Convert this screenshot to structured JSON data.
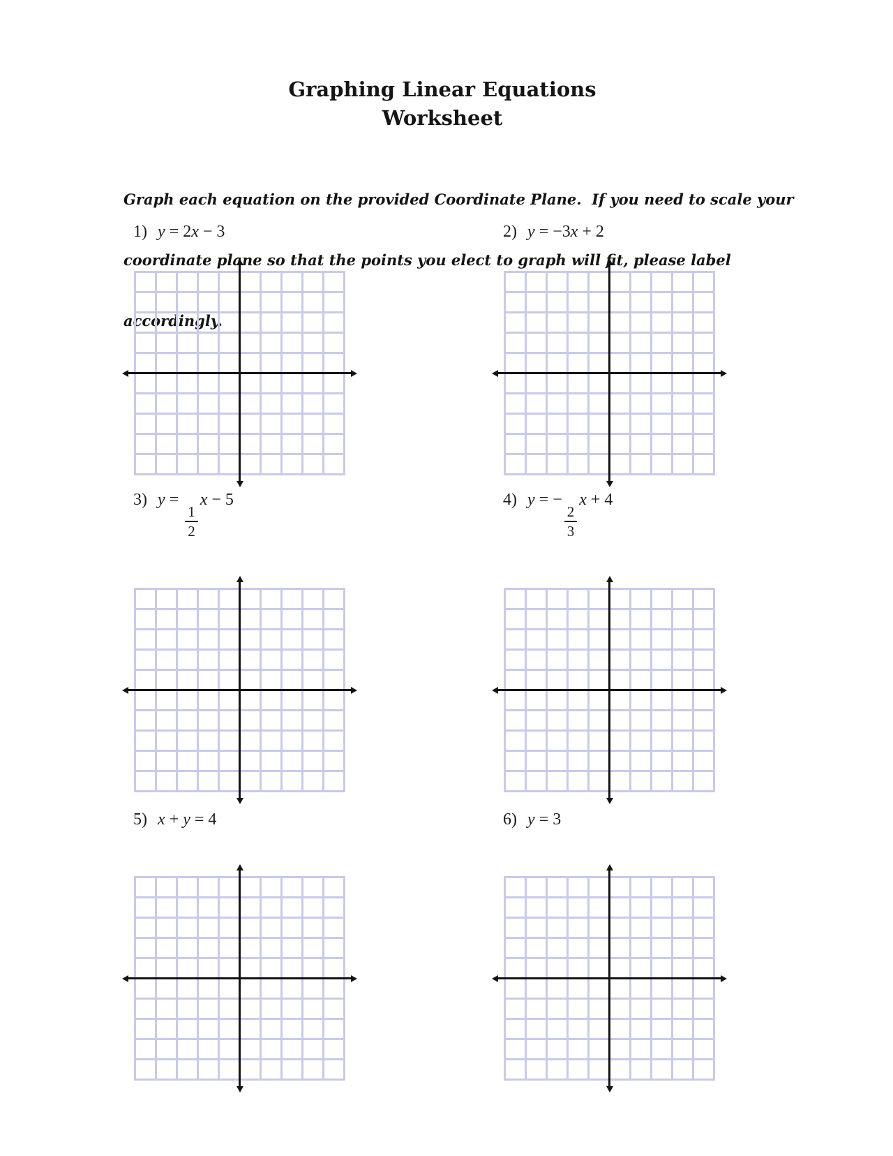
{
  "title": {
    "line1": "Graphing Linear Equations",
    "line2": "Worksheet"
  },
  "instructions": {
    "line1": "Graph each equation on the provided Coordinate Plane.  If you need to scale your",
    "line2": "coordinate plane so that the points you elect to graph will fit, please label",
    "line3": "accordingly."
  },
  "colors": {
    "grid_line": "#c9c9ee",
    "axis": "#141414",
    "text": "#1a1a1a"
  },
  "plot": {
    "columns": 10,
    "rows": 10
  },
  "problems": [
    {
      "label": "1)",
      "t1": "y",
      "t2": " = 2",
      "t3": "x",
      "t4": " − 3"
    },
    {
      "label": "2)",
      "t1": "y",
      "t2": " = −3",
      "t3": "x",
      "t4": " + 2"
    },
    {
      "label": "3)",
      "t1": "y",
      "t2": " = ",
      "num": "1",
      "den": "2",
      "t3": "x",
      "t4": " − 5"
    },
    {
      "label": "4)",
      "t1": "y",
      "t2": " = −",
      "num": "2",
      "den": "3",
      "t3": "x",
      "t4": " + 4"
    },
    {
      "label": "5)",
      "t1": "x",
      "t2": " + ",
      "t3": "y",
      "t4": " = 4"
    },
    {
      "label": "6)",
      "t1": "y",
      "t2": " = 3",
      "t3": "",
      "t4": ""
    }
  ]
}
